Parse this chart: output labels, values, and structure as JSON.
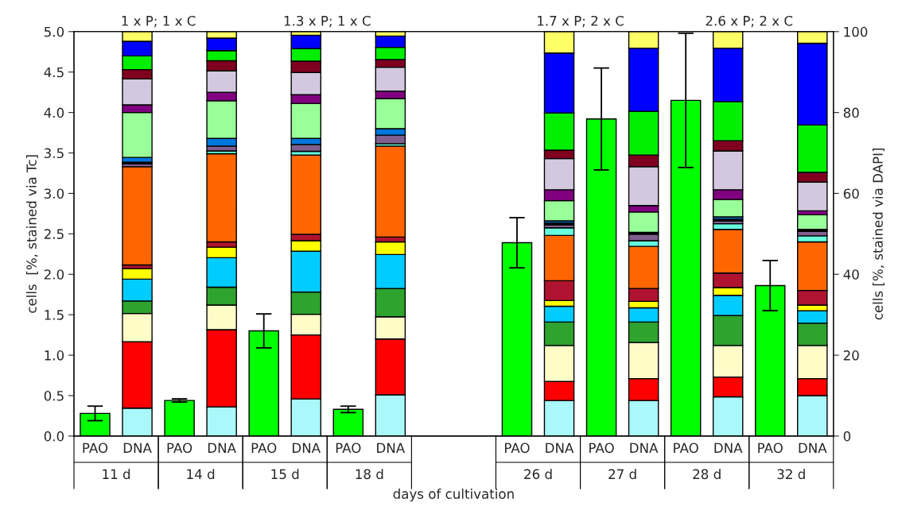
{
  "chart_data": {
    "type": "bar",
    "stacked": true,
    "categories": [
      "PAO",
      "DNA",
      "PAO",
      "DNA",
      "PAO",
      "DNA",
      "PAO",
      "DNA",
      null,
      null,
      "PAO",
      "DNA",
      "PAO",
      "DNA",
      "PAO",
      "DNA",
      "PAO",
      "DNA"
    ],
    "xlabel": "days of cultivation",
    "ylabel": "cells  [%, stained via Tc]",
    "y2label": "cells [%, stained via DAPI]",
    "annotations": [
      "11 d",
      "14 d",
      "15 d",
      "18 d",
      "26 d",
      "27 d",
      "28 d",
      "32 d",
      "1 x P; 1 x C",
      "1.3 x P; 1 x C",
      "1.7 x P; 2 x C",
      "2.6 x P; 2 x C"
    ],
    "ylim": [
      0,
      5
    ],
    "yticks": [
      {
        "value": 0,
        "label": "0.0"
      },
      {
        "value": 0.5,
        "label": "0.5"
      },
      {
        "value": 1,
        "label": "1.0"
      },
      {
        "value": 1.5,
        "label": "1.5"
      },
      {
        "value": 2,
        "label": "2.0"
      },
      {
        "value": 2.5,
        "label": "2.5"
      },
      {
        "value": 3,
        "label": "3.0"
      },
      {
        "value": 3.5,
        "label": "3.5"
      },
      {
        "value": 4,
        "label": "4.0"
      },
      {
        "value": 4.5,
        "label": "4.5"
      },
      {
        "value": 5,
        "label": "5.0"
      }
    ],
    "y2lim": [
      0,
      100
    ],
    "y2ticks": [
      0,
      20,
      40,
      60,
      80,
      100
    ],
    "grid": false,
    "legend": false,
    "series": [
      {
        "color": "#00ff00",
        "axis": "y",
        "values": [
          0.28,
          null,
          0.44,
          null,
          1.3,
          null,
          0.33,
          null,
          null,
          null,
          2.39,
          null,
          3.92,
          null,
          4.15,
          null,
          1.86,
          null
        ],
        "errors": [
          0.09,
          null,
          0.02,
          null,
          0.21,
          null,
          0.04,
          null,
          null,
          null,
          0.31,
          null,
          0.63,
          null,
          0.83,
          null,
          0.31,
          null
        ]
      },
      {
        "color": "#aaf8fa",
        "axis": "y2",
        "values": [
          null,
          6.9,
          null,
          7.2,
          null,
          9.2,
          null,
          10.2,
          null,
          null,
          null,
          8.8,
          null,
          8.8,
          null,
          9.7,
          null,
          10.0
        ]
      },
      {
        "color": "#ff0000",
        "axis": "y2",
        "values": [
          null,
          16.4,
          null,
          19.1,
          null,
          15.8,
          null,
          13.8,
          null,
          null,
          null,
          4.7,
          null,
          5.4,
          null,
          4.9,
          null,
          4.2
        ]
      },
      {
        "color": "#fffcc8",
        "axis": "y2",
        "values": [
          null,
          7.0,
          null,
          6.1,
          null,
          5.1,
          null,
          5.5,
          null,
          null,
          null,
          8.9,
          null,
          8.9,
          null,
          7.8,
          null,
          8.2
        ]
      },
      {
        "color": "#2ea32e",
        "axis": "y2",
        "values": [
          null,
          3.1,
          null,
          4.4,
          null,
          5.5,
          null,
          7.0,
          null,
          null,
          null,
          5.8,
          null,
          5.1,
          null,
          7.4,
          null,
          5.5
        ]
      },
      {
        "color": "#00ccff",
        "axis": "y2",
        "values": [
          null,
          5.4,
          null,
          7.3,
          null,
          10.1,
          null,
          8.4,
          null,
          null,
          null,
          3.9,
          null,
          3.5,
          null,
          5.0,
          null,
          3.1
        ]
      },
      {
        "color": "#ffff00",
        "axis": "y2",
        "values": [
          null,
          2.6,
          null,
          2.6,
          null,
          2.6,
          null,
          3.1,
          null,
          null,
          null,
          1.4,
          null,
          1.6,
          null,
          1.9,
          null,
          1.4
        ]
      },
      {
        "color": "#b0132f",
        "axis": "y2",
        "values": [
          null,
          0.9,
          null,
          1.3,
          null,
          1.6,
          null,
          1.2,
          null,
          null,
          null,
          4.9,
          null,
          3.2,
          null,
          3.6,
          null,
          3.6
        ]
      },
      {
        "color": "#ff6600",
        "axis": "y2",
        "values": [
          null,
          24.3,
          null,
          21.8,
          null,
          19.6,
          null,
          22.5,
          null,
          null,
          null,
          11.2,
          null,
          10.4,
          null,
          10.8,
          null,
          12.0
        ]
      },
      {
        "color": "#66ffdd",
        "axis": "y2",
        "values": [
          null,
          null,
          null,
          0.7,
          null,
          0.9,
          null,
          0.6,
          null,
          null,
          null,
          1.9,
          null,
          1.4,
          null,
          1.4,
          null,
          1.5
        ]
      },
      {
        "color": "#7f5f8f",
        "axis": "y2",
        "values": [
          null,
          0.7,
          null,
          1.2,
          null,
          1.7,
          null,
          2.1,
          null,
          null,
          null,
          0.7,
          null,
          1.6,
          null,
          0.7,
          null,
          1.1
        ]
      },
      {
        "color": "#000000",
        "axis": "y2",
        "values": [
          null,
          0.4,
          null,
          null,
          null,
          null,
          null,
          null,
          null,
          null,
          null,
          0.5,
          null,
          0.5,
          null,
          0.4,
          null,
          0.5
        ]
      },
      {
        "color": "#0077dd",
        "axis": "y2",
        "values": [
          null,
          1.2,
          null,
          1.9,
          null,
          1.5,
          null,
          1.6,
          null,
          null,
          null,
          0.5,
          null,
          null,
          null,
          0.6,
          null,
          null
        ]
      },
      {
        "color": "#99ff99",
        "axis": "y2",
        "values": [
          null,
          11.1,
          null,
          9.3,
          null,
          8.6,
          null,
          7.4,
          null,
          null,
          null,
          5.0,
          null,
          5.0,
          null,
          4.3,
          null,
          3.6
        ]
      },
      {
        "color": "#800080",
        "axis": "y2",
        "values": [
          null,
          1.9,
          null,
          2.1,
          null,
          2.2,
          null,
          1.9,
          null,
          null,
          null,
          2.7,
          null,
          1.6,
          null,
          2.4,
          null,
          1.0
        ]
      },
      {
        "color": "#d4c8e0",
        "axis": "y2",
        "values": [
          null,
          6.4,
          null,
          5.3,
          null,
          5.5,
          null,
          5.9,
          null,
          null,
          null,
          7.7,
          null,
          9.6,
          null,
          9.6,
          null,
          7.1
        ]
      },
      {
        "color": "#800020",
        "axis": "y2",
        "values": [
          null,
          2.3,
          null,
          2.5,
          null,
          2.8,
          null,
          1.9,
          null,
          null,
          null,
          2.1,
          null,
          2.9,
          null,
          2.5,
          null,
          2.4
        ]
      },
      {
        "color": "#00ee00",
        "axis": "y2",
        "values": [
          null,
          3.4,
          null,
          2.5,
          null,
          3.1,
          null,
          3.0,
          null,
          null,
          null,
          9.2,
          null,
          10.8,
          null,
          9.7,
          null,
          11.7
        ]
      },
      {
        "color": "#0000ff",
        "axis": "y2",
        "values": [
          null,
          3.6,
          null,
          3.1,
          null,
          3.3,
          null,
          2.8,
          null,
          null,
          null,
          14.8,
          null,
          15.6,
          null,
          13.2,
          null,
          20.2
        ]
      },
      {
        "color": "#ffff66",
        "axis": "y2",
        "values": [
          null,
          2.4,
          null,
          1.6,
          null,
          0.9,
          null,
          1.1,
          null,
          null,
          null,
          5.3,
          null,
          4.1,
          null,
          4.1,
          null,
          2.9
        ]
      }
    ]
  }
}
